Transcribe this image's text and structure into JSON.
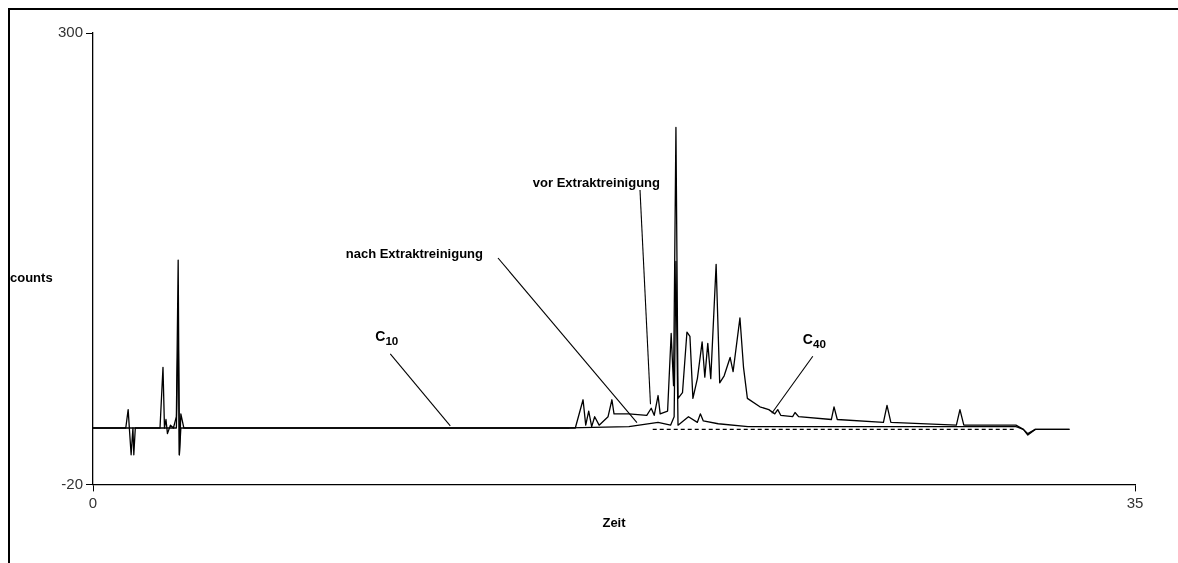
{
  "chart_data": {
    "type": "line",
    "xlabel": "Zeit",
    "ylabel": "counts",
    "xlim": [
      0,
      35
    ],
    "xticks": [
      0,
      35
    ],
    "ylim": [
      -20,
      300
    ],
    "yticks": [
      300,
      -20
    ],
    "grid": false,
    "legend": false,
    "marker": "none",
    "series": [
      {
        "name": "vor Extraktreinigung",
        "color": "#000000",
        "x": [
          0,
          1.1,
          1.18,
          1.22,
          1.28,
          1.34,
          1.37,
          1.42,
          2.25,
          2.35,
          2.4,
          2.45,
          2.5,
          2.6,
          2.7,
          2.8,
          2.86,
          2.9,
          2.95,
          3.05,
          15.0,
          16.2,
          16.46,
          16.55,
          16.65,
          16.75,
          16.85,
          17.0,
          17.3,
          17.43,
          17.5,
          18.0,
          18.6,
          18.75,
          18.85,
          18.98,
          19.05,
          19.3,
          19.42,
          19.5,
          19.58,
          19.65,
          19.8,
          19.95,
          20.05,
          20.15,
          20.3,
          20.46,
          20.55,
          20.65,
          20.75,
          20.93,
          21.05,
          21.2,
          21.4,
          21.5,
          21.73,
          21.85,
          21.98,
          22.4,
          22.7,
          22.9,
          23.0,
          23.1,
          23.5,
          23.58,
          23.7,
          24.8,
          24.89,
          25.0,
          26.55,
          26.67,
          26.8,
          29.0,
          29.12,
          29.25,
          31.0,
          31.25,
          31.4,
          31.65,
          32.8
        ],
        "values": [
          20,
          20,
          33,
          20,
          1,
          20,
          1,
          20,
          20,
          63,
          20,
          26,
          16,
          22,
          20,
          28,
          139,
          1,
          30,
          20,
          20,
          20,
          40,
          22,
          32,
          21,
          28,
          22,
          28,
          40,
          30,
          30,
          29,
          34,
          29,
          43,
          30,
          32,
          87,
          50,
          233,
          41,
          45,
          88,
          85,
          41,
          55,
          81,
          56,
          80,
          55,
          136,
          52,
          57,
          70,
          60,
          98,
          63,
          41,
          35,
          33,
          30,
          33,
          29,
          28,
          31,
          28,
          26,
          35,
          26,
          24,
          36,
          24,
          22,
          33,
          22,
          22,
          19,
          16,
          19,
          19
        ]
      },
      {
        "name": "nach Extraktreinigung",
        "color": "#000000",
        "x": [
          0,
          2.8,
          2.86,
          2.9,
          2.95,
          16.0,
          18.0,
          18.98,
          19.4,
          19.52,
          19.58,
          19.65,
          20.0,
          20.3,
          20.4,
          20.5,
          21.0,
          22.0,
          31.0,
          31.25,
          31.4,
          31.65,
          32.8
        ],
        "values": [
          20,
          20,
          92,
          1,
          20,
          20,
          21,
          24,
          22,
          28,
          138,
          22,
          28,
          24,
          30,
          25,
          23,
          21,
          21,
          19,
          15,
          19,
          19
        ]
      },
      {
        "color": "#000000",
        "line_style": "dashed",
        "x": [
          18.8,
          31.0
        ],
        "values": [
          19,
          19
        ]
      }
    ],
    "annotations": [
      {
        "text": "C$_{10}$",
        "x": 12.0,
        "y": 20
      },
      {
        "text": "C$_{40}$",
        "x": 22.8,
        "y": 29
      }
    ]
  }
}
